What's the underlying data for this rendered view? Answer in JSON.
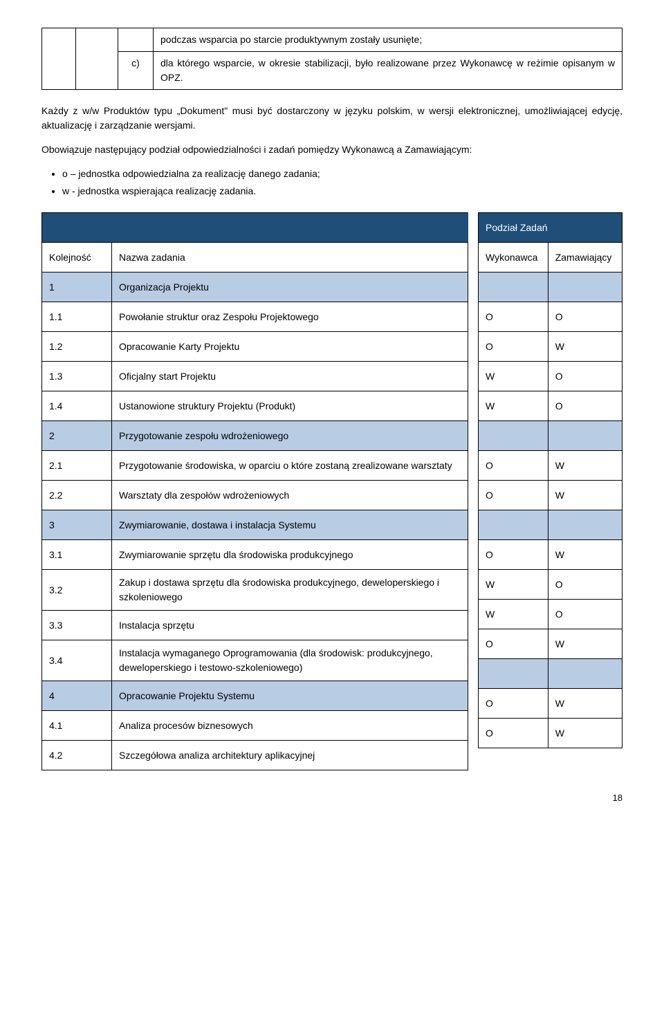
{
  "intro": {
    "line1": "podczas wsparcia po starcie produktywnym zostały usunięte;",
    "c_label": "c)",
    "line2": "dla którego wsparcie, w okresie stabilizacji, było realizowane przez Wykonawcę w reżimie opisanym w OPZ."
  },
  "para1": "Każdy z w/w Produktów typu „Dokument\" musi być dostarczony w języku polskim, w wersji elektronicznej, umożliwiającej edycję, aktualizację i zarządzanie wersjami.",
  "para2": "Obowiązuje następujący podział odpowiedzialności i zadań pomiędzy Wykonawcą a Zamawiającym:",
  "bullet1": "o – jednostka odpowiedzialna za realizację danego zadania;",
  "bullet2": "w - jednostka wspierająca realizację zadania.",
  "headers": {
    "podzial": "Podział Zadań",
    "kolejnosc": "Kolejność",
    "nazwa": "Nazwa zadania",
    "wykonawca": "Wykonawca",
    "zamawiajacy": "Zamawiający"
  },
  "rows": [
    {
      "num": "1",
      "name": "Organizacja Projektu",
      "w": "",
      "z": "",
      "section": true
    },
    {
      "num": "1.1",
      "name": "Powołanie struktur oraz Zespołu Projektowego",
      "w": "O",
      "z": "O"
    },
    {
      "num": "1.2",
      "name": "Opracowanie Karty Projektu",
      "w": "O",
      "z": "W"
    },
    {
      "num": "1.3",
      "name": "Oficjalny start Projektu",
      "w": "W",
      "z": "O"
    },
    {
      "num": "1.4",
      "name": "Ustanowione struktury Projektu (Produkt)",
      "w": "W",
      "z": "O"
    },
    {
      "num": "2",
      "name": "Przygotowanie zespołu wdrożeniowego",
      "w": "",
      "z": "",
      "section": true
    },
    {
      "num": "2.1",
      "name": "Przygotowanie środowiska, w oparciu o które zostaną zrealizowane warsztaty",
      "w": "O",
      "z": "W",
      "tall": true
    },
    {
      "num": "2.2",
      "name": "Warsztaty dla zespołów wdrożeniowych",
      "w": "O",
      "z": "W"
    },
    {
      "num": "3",
      "name": "Zwymiarowanie, dostawa i instalacja Systemu",
      "w": "",
      "z": "",
      "section": true
    },
    {
      "num": "3.1",
      "name": "Zwymiarowanie sprzętu dla środowiska produkcyjnego",
      "w": "O",
      "z": "W",
      "tall": true
    },
    {
      "num": "3.2",
      "name": "Zakup i dostawa sprzętu dla środowiska produkcyjnego, deweloperskiego i szkoleniowego",
      "w": "W",
      "z": "O",
      "tall": true
    },
    {
      "num": "3.3",
      "name": "Instalacja sprzętu",
      "w": "W",
      "z": "O"
    },
    {
      "num": "3.4",
      "name": "Instalacja wymaganego Oprogramowania (dla środowisk: produkcyjnego, deweloperskiego i testowo-szkoleniowego)",
      "w": "O",
      "z": "W",
      "tall3": true
    },
    {
      "num": "4",
      "name": "Opracowanie Projektu Systemu",
      "w": "",
      "z": "",
      "section": true
    },
    {
      "num": "4.1",
      "name": "Analiza procesów biznesowych",
      "w": "O",
      "z": "W"
    },
    {
      "num": "4.2",
      "name": "Szczegółowa analiza architektury aplikacyjnej",
      "w": "O",
      "z": "W"
    }
  ],
  "pagenum": "18"
}
